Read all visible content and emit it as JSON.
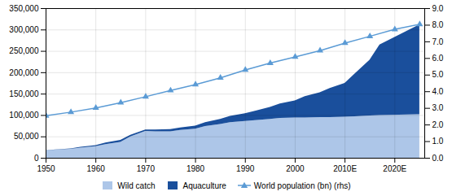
{
  "chart_data": {
    "type": "area",
    "stacked": true,
    "grid": true,
    "legend": "bottom",
    "xlim": [
      1950,
      2026
    ],
    "xticks": [
      1950,
      1960,
      1970,
      1980,
      1990,
      2000,
      {
        "value": 2010,
        "label": "2010E"
      },
      {
        "value": 2020,
        "label": "2020E"
      }
    ],
    "ylim": [
      0,
      350000
    ],
    "yticks": [
      0,
      {
        "value": 50000,
        "label": "50,000"
      },
      {
        "value": 100000,
        "label": "100,000"
      },
      {
        "value": 150000,
        "label": "150,000"
      },
      {
        "value": 200000,
        "label": "200,000"
      },
      {
        "value": 250000,
        "label": "250,000"
      },
      {
        "value": 300000,
        "label": "300,000"
      },
      {
        "value": 350000,
        "label": "350,000"
      }
    ],
    "y2lim": [
      0,
      9.0
    ],
    "y2ticks": [
      {
        "value": 0,
        "label": "0.0"
      },
      {
        "value": 1,
        "label": "1.0"
      },
      {
        "value": 2,
        "label": "2.0"
      },
      {
        "value": 3,
        "label": "3.0"
      },
      {
        "value": 4,
        "label": "4.0"
      },
      {
        "value": 5,
        "label": "5.0"
      },
      {
        "value": 6,
        "label": "6.0"
      },
      {
        "value": 7,
        "label": "7.0"
      },
      {
        "value": 8,
        "label": "8.0"
      },
      {
        "value": 9,
        "label": "9.0"
      }
    ],
    "series": [
      {
        "name": "Wild catch",
        "type": "area",
        "color": "#adc6e8",
        "x": [
          1950,
          1952,
          1955,
          1957,
          1960,
          1962,
          1965,
          1967,
          1970,
          1972,
          1975,
          1977,
          1980,
          1982,
          1985,
          1987,
          1990,
          1992,
          1995,
          1997,
          2000,
          2002,
          2005,
          2007,
          2010,
          2012,
          2015,
          2017,
          2025
        ],
        "values": [
          17000,
          19000,
          21000,
          24000,
          27000,
          32000,
          37000,
          50000,
          63000,
          62000,
          62000,
          65000,
          68000,
          74000,
          79000,
          83000,
          86000,
          88000,
          91000,
          93000,
          94000,
          94000,
          95000,
          95000,
          96000,
          97000,
          99000,
          100000,
          102000
        ]
      },
      {
        "name": "Aquaculture",
        "type": "area",
        "color": "#1a4f9c",
        "x": [
          1950,
          1952,
          1955,
          1957,
          1960,
          1962,
          1965,
          1967,
          1970,
          1972,
          1975,
          1977,
          1980,
          1982,
          1985,
          1987,
          1990,
          1992,
          1995,
          1997,
          2000,
          2002,
          2005,
          2007,
          2010,
          2012,
          2015,
          2017,
          2025
        ],
        "values": [
          500,
          700,
          1000,
          1500,
          2500,
          3500,
          5000,
          3500,
          3000,
          4000,
          5000,
          6000,
          7000,
          9000,
          12000,
          15000,
          18000,
          22000,
          28000,
          34000,
          40000,
          50000,
          58000,
          68000,
          79000,
          100000,
          130000,
          165000,
          210000
        ]
      },
      {
        "name": "World population (bn) (rhs)",
        "type": "line",
        "axis": "y2",
        "marker": "triangle",
        "color": "#5b9bd5",
        "x": [
          1950,
          1955,
          1960,
          1965,
          1970,
          1975,
          1980,
          1985,
          1990,
          1995,
          2000,
          2005,
          2010,
          2015,
          2020,
          2025
        ],
        "values": [
          2.55,
          2.77,
          3.02,
          3.34,
          3.7,
          4.07,
          4.43,
          4.83,
          5.31,
          5.72,
          6.09,
          6.47,
          6.92,
          7.33,
          7.75,
          8.05
        ]
      }
    ]
  }
}
